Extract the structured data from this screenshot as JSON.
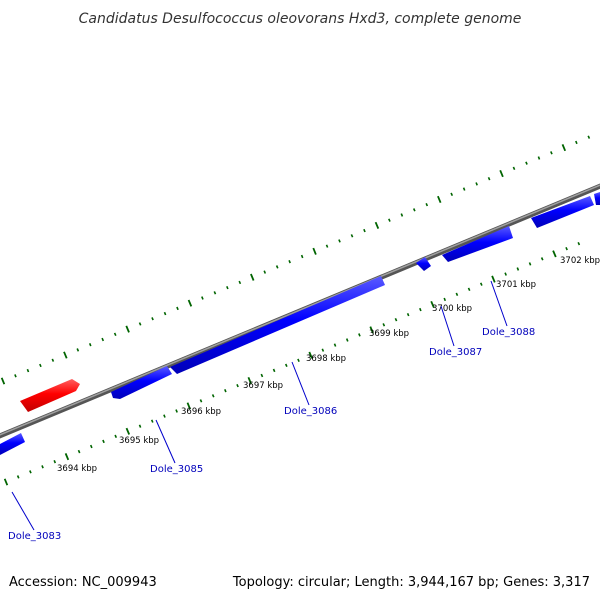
{
  "title": "Candidatus Desulfococcus oleovorans Hxd3, complete genome",
  "footer": {
    "accession": "Accession: NC_009943",
    "summary": "Topology: circular; Length: 3,944,167 bp; Genes: 3,317"
  },
  "colors": {
    "forward_gene": "#ff0000",
    "reverse_gene": "#0000ff",
    "backbone": "#808080",
    "ticks": "#006400",
    "gene_label": "#0000bb"
  },
  "kbp_labels": [
    "3694 kbp",
    "3695 kbp",
    "3696 kbp",
    "3697 kbp",
    "3698 kbp",
    "3699 kbp",
    "3700 kbp",
    "3701 kbp",
    "3702 kbp"
  ],
  "gene_labels": [
    "Dole_3083",
    "Dole_3085",
    "Dole_3086",
    "Dole_3087",
    "Dole_3088"
  ]
}
